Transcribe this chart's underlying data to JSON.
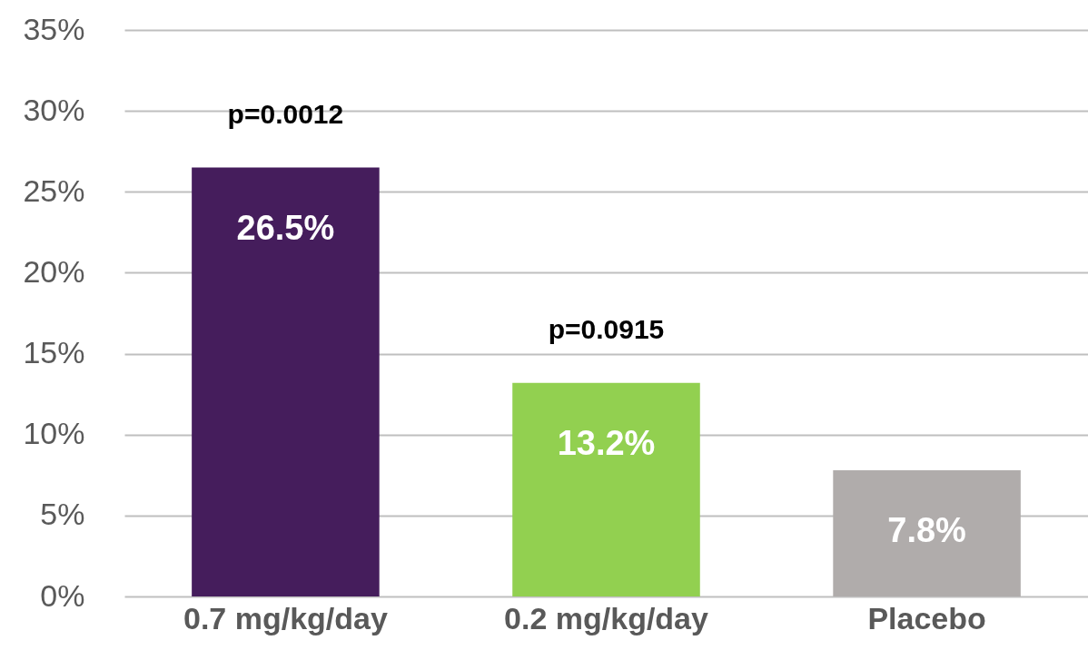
{
  "chart_data": {
    "type": "bar",
    "categories": [
      "0.7 mg/kg/day",
      "0.2 mg/kg/day",
      "Placebo"
    ],
    "values": [
      26.5,
      13.2,
      7.8
    ],
    "colors": [
      "#451d5c",
      "#92d050",
      "#b0acab"
    ],
    "value_labels": [
      "26.5%",
      "13.2%",
      "7.8%"
    ],
    "ylim": [
      0,
      35
    ],
    "yticks": [
      {
        "value": 0,
        "label": "0%"
      },
      {
        "value": 5,
        "label": "5%"
      },
      {
        "value": 10,
        "label": "10%"
      },
      {
        "value": 15,
        "label": "15%"
      },
      {
        "value": 20,
        "label": "20%"
      },
      {
        "value": 25,
        "label": "25%"
      },
      {
        "value": 30,
        "label": "30%"
      },
      {
        "value": 35,
        "label": "35%"
      }
    ],
    "grid": "y",
    "annotations": [
      "p=0.0012",
      "p=0.0915"
    ]
  }
}
